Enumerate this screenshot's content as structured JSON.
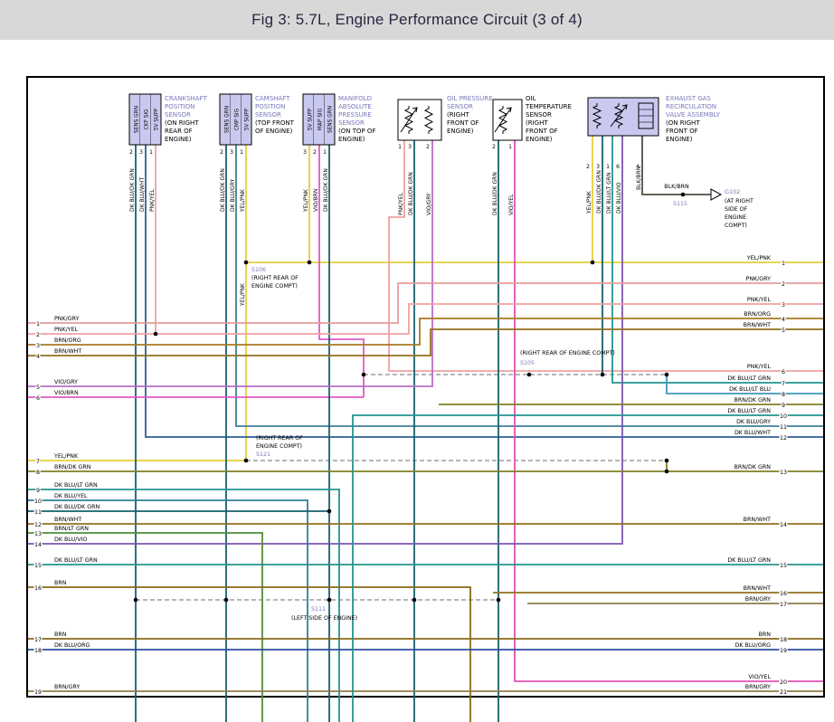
{
  "title": "Fig 3: 5.7L, Engine Performance Circuit (3 of 4)",
  "colors": {
    "titlebar_bg": "#d8d8d8",
    "title_text": "#262640",
    "label_blue": "#7878bc",
    "dashed_gray": "#8a8a8a",
    "connector_fill": "#c9c9f0",
    "border": "#000000",
    "wire": {
      "YEL/PNK": "#e6cf3a",
      "PNK/GRY": "#e89c9c",
      "PNK/YEL": "#efa0a0",
      "BRN/ORG": "#a87a22",
      "BRN/WHT": "#93701e",
      "BRN": "#8a681a",
      "BRN/GRY": "#8f7c48",
      "BRN/DK GRN": "#7f7f26",
      "BRN/LT GRN": "#4f8f3a",
      "VIO/GRY": "#b56fc8",
      "VIO/BRN": "#e05ac8",
      "VIO/YEL": "#e052b4",
      "DK BLU/DK GRN": "#17606e",
      "DK BLU/WHT": "#2f5f94",
      "DK BLU/GRY": "#3f7e96",
      "DK BLU/LT GRN": "#23948e",
      "DK BLU/LT BLU": "#3f97bb",
      "DK BLU/YEL": "#2f7f9a",
      "DK BLU/VIO": "#7a55b0",
      "DK BLU/ORG": "#2d4f9e",
      "BLK/BRN": "#4f4f42"
    }
  },
  "components": [
    {
      "name": "CRANKSHAFT POSITION SENSOR",
      "location": "(ON RIGHT REAR OF ENGINE)",
      "name_color": "blue",
      "pins": [
        "SENS GRN",
        "CKP SIG",
        "5V SUPP"
      ],
      "pin_numbers": [
        "2",
        "3",
        "1"
      ],
      "wires": [
        "DK BLU/DK GRN",
        "DK BLU/WHT",
        "PNK/YEL"
      ]
    },
    {
      "name": "CAMSHAFT POSITION SENSOR",
      "location": "(TOP FRONT OF ENGINE)",
      "name_color": "blue",
      "pins": [
        "SENS GRN",
        "CMP SIG",
        "5V SUPP"
      ],
      "pin_numbers": [
        "2",
        "3",
        "1"
      ],
      "wires": [
        "DK BLU/DK GRN",
        "DK BLU/GRY",
        "YEL/PNK"
      ]
    },
    {
      "name": "MANIFOLD ABSOLUTE PRESSURE SENSOR",
      "location": "(ON TOP OF ENGINE)",
      "name_color": "blue",
      "pins": [
        "5V SUPP",
        "MAP SIG",
        "SENS GRN"
      ],
      "pin_numbers": [
        "3",
        "2",
        "1"
      ],
      "wires": [
        "YEL/PNK",
        "VIO/BRN",
        "DK BLU/DK GRN"
      ]
    },
    {
      "name": "OIL PRESSURE SENSOR",
      "location": "(RIGHT FRONT OF ENGINE)",
      "name_color": "blue",
      "pins": [],
      "pin_numbers": [
        "1",
        "3",
        "2"
      ],
      "wires": [
        "PNK/YEL",
        "DK BLU/DK GRN",
        "VIO/GRY"
      ]
    },
    {
      "name": "OIL TEMPERATURE SENSOR",
      "location": "(RIGHT FRONT OF ENGINE)",
      "name_color": "black",
      "pins": [],
      "pin_numbers": [
        "2",
        "1"
      ],
      "wires": [
        "DK BLU/DK GRN",
        "VIO/YEL"
      ]
    },
    {
      "name": "EXHAUST GAS RECIRCULATION VALVE ASSEMBLY",
      "location": "(ON RIGHT FRONT OF ENGINE)",
      "name_color": "blue",
      "pins": [],
      "pin_numbers": [
        "2",
        "3",
        "1",
        "6",
        "4"
      ],
      "wires": [
        "YEL/PNK",
        "DK BLU/DK GRN",
        "DK BLU/LT GRN",
        "DK BLU/VIO",
        "BLK/BRN"
      ]
    }
  ],
  "left_rows": [
    {
      "n": "1",
      "label": "PNK/GRY"
    },
    {
      "n": "2",
      "label": "PNK/YEL"
    },
    {
      "n": "3",
      "label": "BRN/ORG"
    },
    {
      "n": "4",
      "label": "BRN/WHT"
    },
    {
      "n": "5",
      "label": "VIO/GRY"
    },
    {
      "n": "6",
      "label": "VIO/BRN"
    },
    {
      "n": "7",
      "label": "YEL/PNK"
    },
    {
      "n": "8",
      "label": "BRN/DK GRN"
    },
    {
      "n": "9",
      "label": "DK BLU/LT GRN"
    },
    {
      "n": "10",
      "label": "DK BLU/YEL"
    },
    {
      "n": "11",
      "label": "DK BLU/DK GRN"
    },
    {
      "n": "12",
      "label": "BRN/WHT"
    },
    {
      "n": "13",
      "label": "BRN/LT GRN"
    },
    {
      "n": "14",
      "label": "DK BLU/VIO"
    },
    {
      "n": "15",
      "label": "DK BLU/LT GRN"
    },
    {
      "n": "16",
      "label": "BRN"
    },
    {
      "n": "17",
      "label": "BRN"
    },
    {
      "n": "18",
      "label": "DK BLU/ORG"
    },
    {
      "n": "19",
      "label": "BRN/GRY"
    }
  ],
  "right_rows": [
    {
      "n": "1",
      "label": "YEL/PNK"
    },
    {
      "n": "2",
      "label": "PNK/GRY"
    },
    {
      "n": "3",
      "label": "PNK/YEL"
    },
    {
      "n": "4",
      "label": "BRN/ORG"
    },
    {
      "n": "5",
      "label": "BRN/WHT"
    },
    {
      "n": "6",
      "label": "PNK/YEL"
    },
    {
      "n": "7",
      "label": "DK BLU/LT GRN"
    },
    {
      "n": "8",
      "label": "DK BLU/LT BLU"
    },
    {
      "n": "9",
      "label": "BRN/DK GRN"
    },
    {
      "n": "10",
      "label": "DK BLU/LT GRN"
    },
    {
      "n": "11",
      "label": "DK BLU/GRY"
    },
    {
      "n": "12",
      "label": "DK BLU/WHT"
    },
    {
      "n": "13",
      "label": "BRN/DK GRN"
    },
    {
      "n": "14",
      "label": "BRN/WHT"
    },
    {
      "n": "15",
      "label": "DK BLU/LT GRN"
    },
    {
      "n": "16",
      "label": "BRN/WHT"
    },
    {
      "n": "17",
      "label": "BRN/GRY"
    },
    {
      "n": "18",
      "label": "BRN"
    },
    {
      "n": "19",
      "label": "DK BLU/ORG"
    },
    {
      "n": "20",
      "label": "VIO/YEL"
    },
    {
      "n": "21",
      "label": "BRN/GRY"
    }
  ],
  "splices": {
    "s106": {
      "id": "S106",
      "note": "(RIGHT REAR OF ENGINE COMPT)",
      "wire_label": "YEL/PNK"
    },
    "s105": {
      "id": "S105",
      "note": "(RIGHT REAR OF ENGINE COMPT)"
    },
    "s121": {
      "id": "S121",
      "note": "(RIGHT REAR OF ENGINE COMPT)"
    },
    "s111": {
      "id": "S111",
      "note": "(LEFT SIDE OF ENGINE)"
    },
    "s115": {
      "id": "S115"
    }
  },
  "ground": {
    "id": "G102",
    "note": "(AT RIGHT SIDE OF ENGINE COMPT)",
    "wire_label": "BLK/BRN"
  }
}
